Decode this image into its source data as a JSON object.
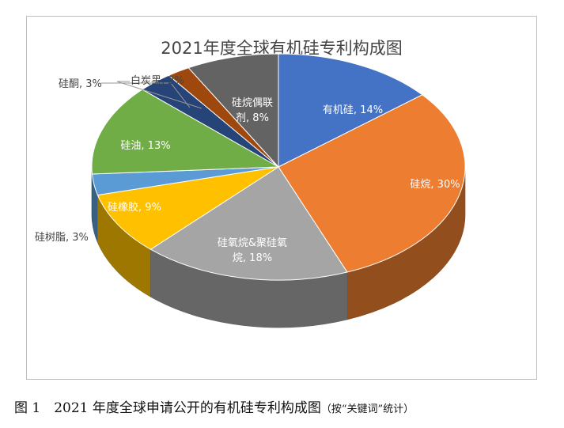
{
  "chart_data": {
    "type": "pie",
    "title": "2021年度全球有机硅专利构成图",
    "slices": [
      {
        "label": "有机硅",
        "value": 14,
        "display": "有机硅, 14%",
        "color": "#4472C4"
      },
      {
        "label": "硅烷",
        "value": 30,
        "display": "硅烷, 30%",
        "color": "#ED7D31"
      },
      {
        "label": "硅氧烷&聚硅氧烷",
        "value": 18,
        "display": "硅氧烷&聚硅氧烷, 18%",
        "color": "#A5A5A5"
      },
      {
        "label": "硅橡胶",
        "value": 9,
        "display": "硅橡胶, 9%",
        "color": "#FFC000"
      },
      {
        "label": "硅树脂",
        "value": 3,
        "display": "硅树脂, 3%",
        "color": "#5B9BD5"
      },
      {
        "label": "硅油",
        "value": 13,
        "display": "硅油, 13%",
        "color": "#70AD47"
      },
      {
        "label": "硅酮",
        "value": 3,
        "display": "硅酮, 3%",
        "color": "#264478"
      },
      {
        "label": "白炭黑",
        "value": 2,
        "display": "白炭黑, 2%",
        "color": "#9E480E"
      },
      {
        "label": "硅烷偶联剂",
        "value": 8,
        "display": "硅烷偶联剂, 8%",
        "color": "#636363"
      }
    ]
  },
  "caption": {
    "main": "图 1　2021 年度全球申请公开的有机硅专利构成图",
    "note": "（按“关键词”统计）"
  }
}
